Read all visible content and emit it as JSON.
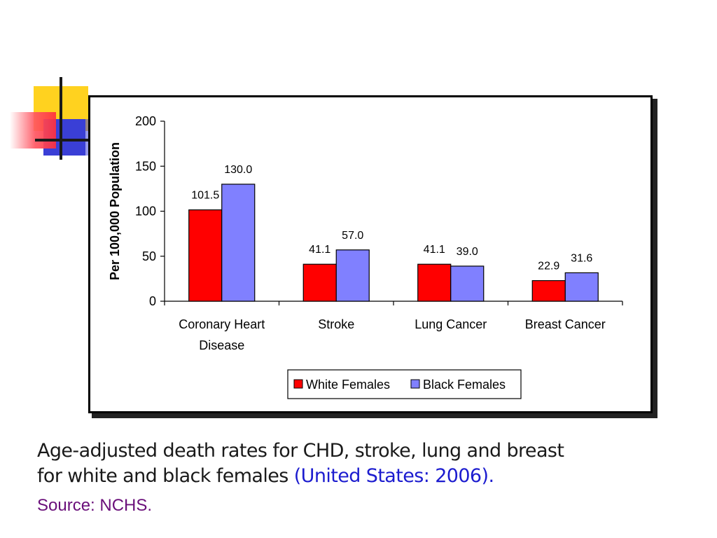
{
  "chart_data": {
    "type": "bar",
    "title": "",
    "xlabel": "",
    "ylabel": "Per 100,000 Population",
    "ylim": [
      0,
      200
    ],
    "yticks": [
      0,
      50,
      100,
      150,
      200
    ],
    "categories": [
      [
        "Coronary Heart",
        "Disease"
      ],
      [
        "Stroke"
      ],
      [
        "Lung Cancer"
      ],
      [
        "Breast Cancer"
      ]
    ],
    "series": [
      {
        "name": "White Females",
        "color": "#ff0000",
        "values": [
          101.5,
          41.1,
          41.1,
          22.9
        ],
        "labels": [
          "101.5",
          "41.1",
          "41.1",
          "22.9"
        ]
      },
      {
        "name": "Black Females",
        "color": "#8080ff",
        "values": [
          130.0,
          57.0,
          39.0,
          31.6
        ],
        "labels": [
          "130.0",
          "57.0",
          "39.0",
          "31.6"
        ]
      }
    ],
    "grid": false,
    "legend": "bottom"
  },
  "caption": {
    "line1": "Age-adjusted death rates for CHD, stroke, lung and breast",
    "line2": "for white and black females ",
    "highlight": "(United States: 2006).",
    "source": "Source: NCHS."
  }
}
